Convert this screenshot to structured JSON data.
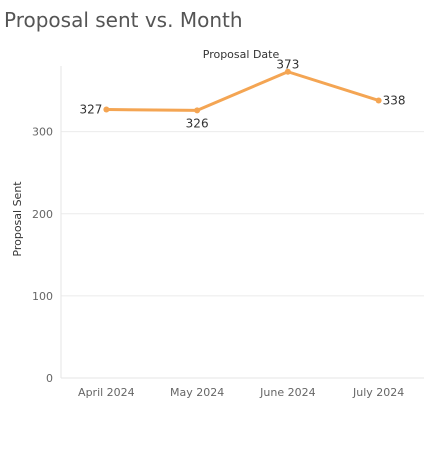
{
  "title": "Proposal sent vs. Month",
  "chart_data": {
    "type": "line",
    "title": "Proposal sent vs. Month",
    "xlabel": "Proposal Date",
    "ylabel": "Proposal Sent",
    "categories": [
      "April 2024",
      "May 2024",
      "June 2024",
      "July 2024"
    ],
    "series": [
      {
        "values": [
          327,
          326,
          373,
          338
        ]
      }
    ],
    "data_labels": [
      "327",
      "326",
      "373",
      "338"
    ],
    "yticks": [
      0,
      100,
      200,
      300
    ],
    "ylim": [
      0,
      380
    ],
    "grid": true,
    "line_color": "#f4a553"
  }
}
